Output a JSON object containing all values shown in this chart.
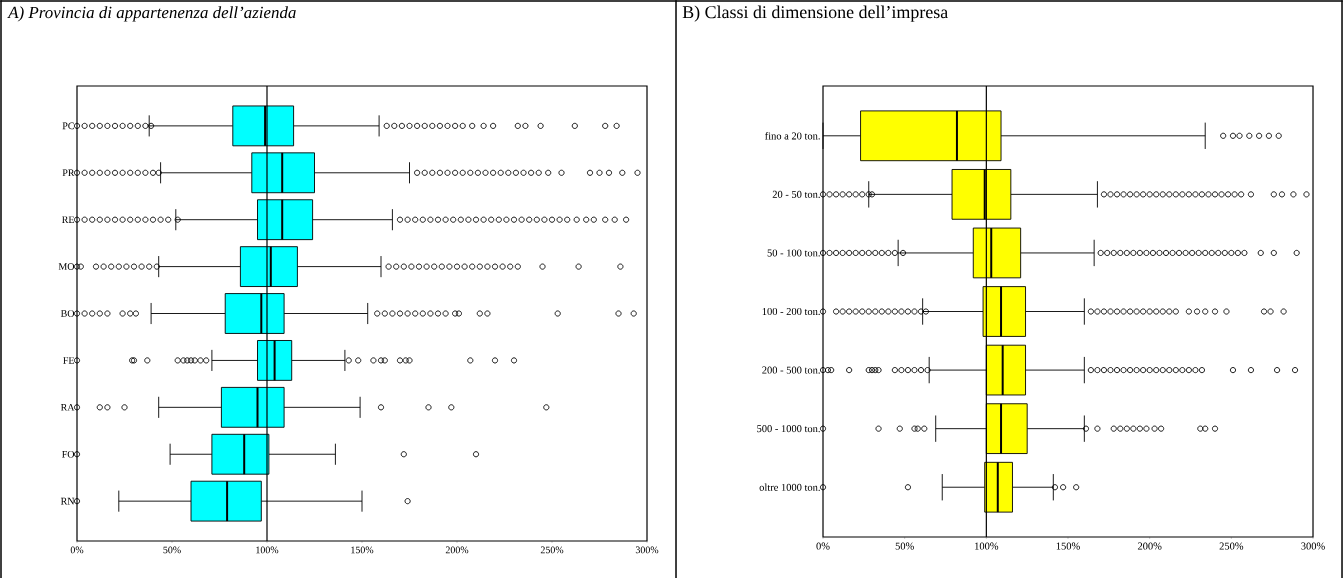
{
  "chart_data": [
    {
      "type": "box",
      "title": "A) Provincia di appartenenza dell’azienda",
      "orientation": "horizontal",
      "color": "#00ffff",
      "categories": [
        "PC",
        "PR",
        "RE",
        "MO",
        "BO",
        "FE",
        "RA",
        "FO",
        "RN"
      ],
      "boxes": [
        {
          "low": 38,
          "q1": 82,
          "median": 99,
          "q3": 114,
          "high": 159,
          "outliers": [
            0,
            4,
            8,
            12,
            16,
            20,
            24,
            28,
            32,
            36,
            39,
            163,
            167,
            171,
            175,
            179,
            183,
            187,
            191,
            195,
            199,
            203,
            208,
            214,
            219,
            232,
            236,
            244,
            262,
            278,
            284
          ]
        },
        {
          "low": 44,
          "q1": 92,
          "median": 108,
          "q3": 125,
          "high": 175,
          "outliers": [
            0,
            4,
            8,
            12,
            16,
            20,
            24,
            28,
            32,
            36,
            40,
            43,
            179,
            183,
            187,
            191,
            195,
            199,
            203,
            207,
            211,
            215,
            219,
            223,
            227,
            231,
            235,
            239,
            243,
            248,
            255,
            270,
            275,
            280,
            287,
            295
          ]
        },
        {
          "low": 52,
          "q1": 95,
          "median": 108,
          "q3": 124,
          "high": 166,
          "outliers": [
            0,
            4,
            8,
            12,
            16,
            20,
            24,
            28,
            32,
            36,
            40,
            44,
            48,
            53,
            170,
            174,
            178,
            182,
            186,
            190,
            194,
            198,
            202,
            206,
            210,
            214,
            218,
            222,
            226,
            230,
            234,
            238,
            242,
            246,
            250,
            254,
            258,
            263,
            268,
            272,
            278,
            283,
            289
          ]
        },
        {
          "low": 43,
          "q1": 86,
          "median": 102,
          "q3": 116,
          "high": 160,
          "outliers": [
            0,
            2,
            10,
            14,
            18,
            22,
            26,
            30,
            34,
            38,
            42,
            164,
            168,
            172,
            176,
            180,
            184,
            188,
            192,
            196,
            200,
            204,
            208,
            212,
            216,
            220,
            224,
            228,
            232,
            245,
            264,
            286
          ]
        },
        {
          "low": 39,
          "q1": 78,
          "median": 97,
          "q3": 109,
          "high": 153,
          "outliers": [
            0,
            4,
            8,
            12,
            16,
            24,
            28,
            31,
            158,
            162,
            166,
            170,
            174,
            178,
            182,
            186,
            190,
            194,
            199,
            201,
            212,
            216,
            253,
            285,
            293
          ]
        },
        {
          "low": 71,
          "q1": 95,
          "median": 104,
          "q3": 113,
          "high": 141,
          "outliers": [
            0,
            29,
            30,
            37,
            53,
            56,
            58,
            60,
            62,
            65,
            68,
            143,
            148,
            156,
            160,
            162,
            170,
            173,
            175,
            207,
            220,
            230
          ]
        },
        {
          "low": 43,
          "q1": 76,
          "median": 95,
          "q3": 109,
          "high": 149,
          "outliers": [
            0,
            12,
            16,
            25,
            160,
            185,
            197,
            247
          ]
        },
        {
          "low": 49,
          "q1": 71,
          "median": 88,
          "q3": 101,
          "high": 136,
          "outliers": [
            0,
            172,
            210
          ]
        },
        {
          "low": 22,
          "q1": 60,
          "median": 79,
          "q3": 97,
          "high": 150,
          "outliers": [
            0,
            174
          ]
        }
      ],
      "xlim": [
        0,
        300
      ],
      "xticks": [
        {
          "value": 0,
          "label": "0%"
        },
        {
          "value": 50,
          "label": "50%"
        },
        {
          "value": 100,
          "label": "100%"
        },
        {
          "value": 150,
          "label": "150%"
        },
        {
          "value": 200,
          "label": "200%"
        },
        {
          "value": 250,
          "label": "250%"
        },
        {
          "value": 300,
          "label": "300%"
        }
      ],
      "ref_lines": [
        {
          "axis": "x",
          "value": 100
        }
      ]
    },
    {
      "type": "box",
      "title": "B) Classi di dimensione dell’impresa",
      "orientation": "horizontal",
      "color": "#ffff00",
      "categories": [
        "fino a 20 ton.",
        "20 - 50 ton.",
        "50 - 100 ton.",
        "100 - 200 ton.",
        "200 - 500 ton.",
        "500 - 1000 ton.",
        "oltre 1000 ton."
      ],
      "boxes": [
        {
          "low": 0,
          "q1": 23,
          "median": 82,
          "q3": 109,
          "high": 234,
          "outliers": [
            245,
            251,
            255,
            261,
            267,
            273,
            279
          ]
        },
        {
          "low": 28,
          "q1": 79,
          "median": 99,
          "q3": 115,
          "high": 168,
          "outliers": [
            0,
            4,
            8,
            12,
            16,
            20,
            24,
            28,
            30,
            172,
            176,
            180,
            184,
            188,
            192,
            196,
            200,
            204,
            208,
            212,
            216,
            220,
            224,
            228,
            232,
            236,
            240,
            244,
            248,
            252,
            256,
            262,
            276,
            281,
            288,
            296
          ]
        },
        {
          "low": 46,
          "q1": 92,
          "median": 103,
          "q3": 121,
          "high": 166,
          "outliers": [
            0,
            4,
            8,
            12,
            16,
            20,
            24,
            28,
            32,
            36,
            40,
            44,
            49,
            170,
            174,
            178,
            182,
            186,
            190,
            194,
            198,
            202,
            206,
            210,
            214,
            218,
            222,
            226,
            230,
            234,
            238,
            242,
            246,
            250,
            254,
            258,
            268,
            276,
            290
          ]
        },
        {
          "low": 61,
          "q1": 98,
          "median": 109,
          "q3": 124,
          "high": 160,
          "outliers": [
            0,
            8,
            12,
            16,
            20,
            24,
            28,
            32,
            36,
            40,
            44,
            48,
            52,
            56,
            60,
            63,
            164,
            168,
            172,
            176,
            180,
            184,
            188,
            192,
            196,
            200,
            204,
            208,
            212,
            216,
            224,
            229,
            234,
            240,
            247,
            270,
            274,
            282
          ]
        },
        {
          "low": 65,
          "q1": 100,
          "median": 110,
          "q3": 124,
          "high": 160,
          "outliers": [
            0,
            3,
            5,
            16,
            28,
            30,
            32,
            34,
            44,
            48,
            52,
            56,
            60,
            64,
            164,
            168,
            172,
            176,
            180,
            184,
            188,
            192,
            196,
            200,
            204,
            208,
            212,
            216,
            220,
            224,
            228,
            232,
            251,
            262,
            278,
            289
          ]
        },
        {
          "low": 69,
          "q1": 100,
          "median": 109,
          "q3": 125,
          "high": 160,
          "outliers": [
            0,
            34,
            47,
            56,
            58,
            62,
            161,
            168,
            178,
            182,
            186,
            190,
            194,
            198,
            203,
            207,
            231,
            234,
            240
          ]
        },
        {
          "low": 73,
          "q1": 99,
          "median": 107,
          "q3": 116,
          "high": 141,
          "outliers": [
            0,
            52,
            142,
            147,
            155
          ]
        }
      ],
      "xlim": [
        0,
        300
      ],
      "xticks": [
        {
          "value": 0,
          "label": "0%"
        },
        {
          "value": 50,
          "label": "50%"
        },
        {
          "value": 100,
          "label": "100%"
        },
        {
          "value": 150,
          "label": "150%"
        },
        {
          "value": 200,
          "label": "200%"
        },
        {
          "value": 250,
          "label": "250%"
        },
        {
          "value": 300,
          "label": "300%"
        }
      ],
      "ref_lines": [
        {
          "axis": "x",
          "value": 100
        }
      ]
    }
  ]
}
